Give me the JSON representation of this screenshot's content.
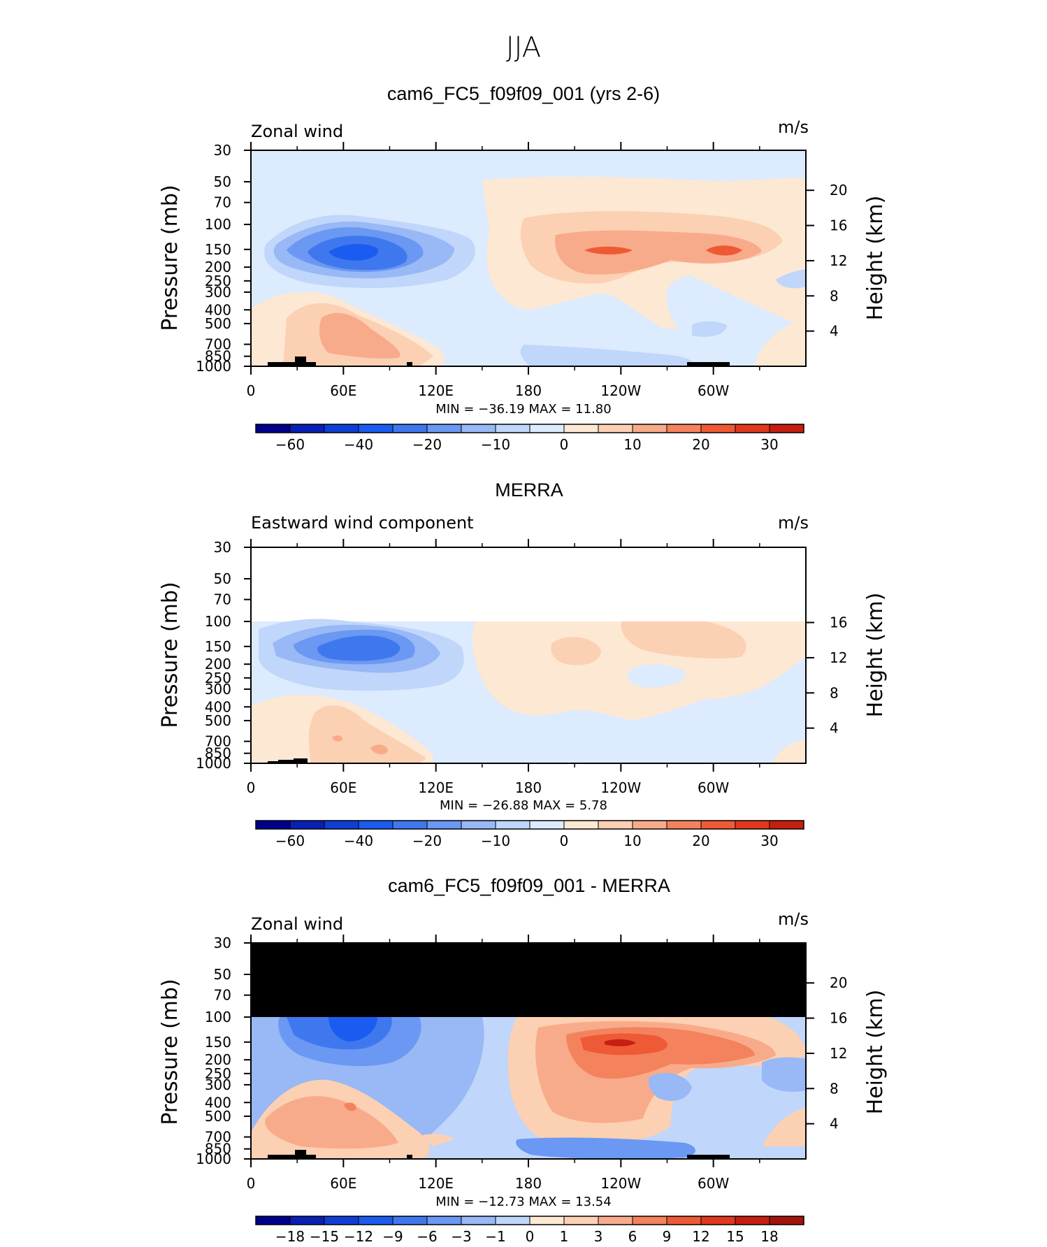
{
  "figure": {
    "title": "JJA"
  },
  "chart_data": [
    {
      "type": "heatmap",
      "panel_title": "cam6_FC5_f09f09_001 (yrs 2-6)",
      "left_string": "Zonal wind",
      "right_string": "m/s",
      "ylabel": "Pressure (mb)",
      "ylabel_right": "Height (km)",
      "x_ticks": [
        "0",
        "60E",
        "120E",
        "180",
        "120W",
        "60W"
      ],
      "y_ticks": [
        "30",
        "50",
        "70",
        "100",
        "150",
        "200",
        "250",
        "300",
        "400",
        "500",
        "700",
        "850",
        "1000"
      ],
      "height_ticks": [
        "20",
        "16",
        "12",
        "8",
        "4"
      ],
      "min_max": "MIN =  −36.19   MAX =    11.80",
      "min": -36.19,
      "max": 11.8,
      "colorbar_labels": [
        "−60",
        "−40",
        "−20",
        "−10",
        "0",
        "10",
        "20",
        "30"
      ],
      "colorbar_levels": [
        -70,
        -60,
        -50,
        -40,
        -30,
        -20,
        -15,
        -10,
        -5,
        0,
        5,
        10,
        15,
        20,
        25,
        30,
        35
      ],
      "features": [
        {
          "desc": "easterly jet core",
          "lon": 70,
          "pressure": 150,
          "value": -36
        },
        {
          "desc": "westerly max",
          "lon": 245,
          "pressure": 150,
          "value": 11.8
        }
      ]
    },
    {
      "type": "heatmap",
      "panel_title": "MERRA",
      "left_string": "Eastward wind component",
      "right_string": "m/s",
      "ylabel": "Pressure (mb)",
      "ylabel_right": "Height (km)",
      "x_ticks": [
        "0",
        "60E",
        "120E",
        "180",
        "120W",
        "60W"
      ],
      "y_ticks": [
        "30",
        "50",
        "70",
        "100",
        "150",
        "200",
        "250",
        "300",
        "400",
        "500",
        "700",
        "850",
        "1000"
      ],
      "height_ticks": [
        "16",
        "12",
        "8",
        "4"
      ],
      "min_max": "MIN =  −26.88   MAX =      5.78",
      "min": -26.88,
      "max": 5.78,
      "colorbar_labels": [
        "−60",
        "−40",
        "−20",
        "−10",
        "0",
        "10",
        "20",
        "30"
      ],
      "colorbar_levels": [
        -70,
        -60,
        -50,
        -40,
        -30,
        -20,
        -15,
        -10,
        -5,
        0,
        5,
        10,
        15,
        20,
        25,
        30,
        35
      ],
      "data_top_pressure": 100
    },
    {
      "type": "heatmap",
      "panel_title": "cam6_FC5_f09f09_001 - MERRA",
      "left_string": "Zonal wind",
      "right_string": "m/s",
      "ylabel": "Pressure (mb)",
      "ylabel_right": "Height (km)",
      "x_ticks": [
        "0",
        "60E",
        "120E",
        "180",
        "120W",
        "60W"
      ],
      "y_ticks": [
        "30",
        "50",
        "70",
        "100",
        "150",
        "200",
        "250",
        "300",
        "400",
        "500",
        "700",
        "850",
        "1000"
      ],
      "height_ticks": [
        "20",
        "16",
        "12",
        "8",
        "4"
      ],
      "min_max": "MIN =  −12.73   MAX =    13.54",
      "min": -12.73,
      "max": 13.54,
      "colorbar_labels": [
        "−18",
        "−15",
        "−12",
        "−9",
        "−6",
        "−3",
        "−1",
        "0",
        "1",
        "3",
        "6",
        "9",
        "12",
        "15",
        "18"
      ],
      "colorbar_levels": [
        -18,
        -15,
        -12,
        -9,
        -6,
        -3,
        -1,
        0,
        1,
        3,
        6,
        9,
        12,
        15,
        18
      ],
      "missing_above_pressure": 100
    }
  ],
  "colors": {
    "palette": [
      "#00008b",
      "#0a1fb5",
      "#0f3ed6",
      "#1b5cf0",
      "#3f78ee",
      "#6a98f2",
      "#98b8f6",
      "#c0d6fb",
      "#dcebfd",
      "#fde8d4",
      "#fcd0b3",
      "#f8ab8a",
      "#f4825d",
      "#ee5a35",
      "#e0381c",
      "#c51f10",
      "#a1150a",
      "#7e0806"
    ]
  }
}
